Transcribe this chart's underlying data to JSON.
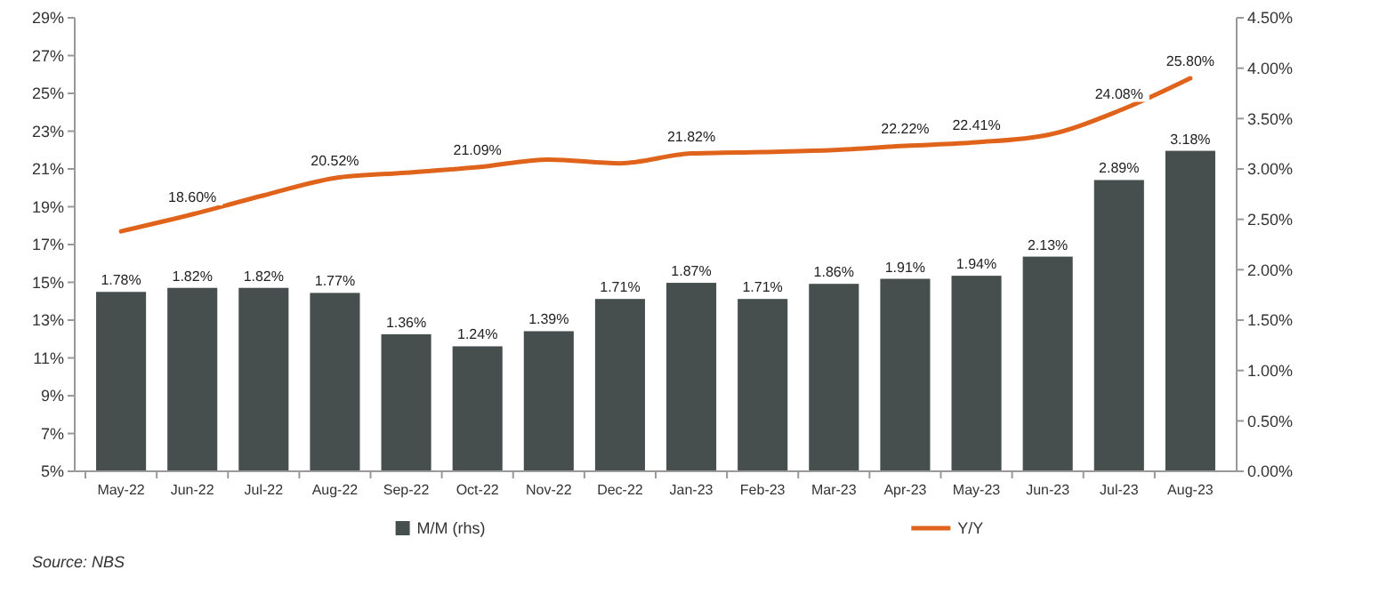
{
  "chart_data": {
    "type": "bar",
    "categories": [
      "May-22",
      "Jun-22",
      "Jul-22",
      "Aug-22",
      "Sep-22",
      "Oct-22",
      "Nov-22",
      "Dec-22",
      "Jan-23",
      "Feb-23",
      "Mar-23",
      "Apr-23",
      "May-23",
      "Jun-23",
      "Jul-23",
      "Aug-23"
    ],
    "series": [
      {
        "name": "M/M (rhs)",
        "axis": "y2",
        "color": "#464e4e",
        "values": [
          1.78,
          1.82,
          1.82,
          1.77,
          1.36,
          1.24,
          1.39,
          1.71,
          1.87,
          1.71,
          1.86,
          1.91,
          1.94,
          2.13,
          2.89,
          3.18
        ],
        "value_labels": [
          "1.78%",
          "1.82%",
          "1.82%",
          "1.77%",
          "1.36%",
          "1.24%",
          "1.39%",
          "1.71%",
          "1.87%",
          "1.71%",
          "1.86%",
          "1.91%",
          "1.94%",
          "2.13%",
          "2.89%",
          "3.18%"
        ]
      },
      {
        "name": "Y/Y",
        "type": "line",
        "axis": "y",
        "color": "#e0631c",
        "values": [
          17.7,
          18.6,
          19.6,
          20.52,
          20.8,
          21.09,
          21.5,
          21.3,
          21.82,
          21.9,
          22.0,
          22.22,
          22.41,
          22.8,
          24.08,
          25.8
        ],
        "value_labels": [
          null,
          "18.60%",
          null,
          "20.52%",
          null,
          "21.09%",
          null,
          null,
          "21.82%",
          null,
          null,
          "22.22%",
          "22.41%",
          null,
          "24.08%",
          "25.80%"
        ]
      }
    ],
    "ylim": [
      5,
      29
    ],
    "yticks": [
      {
        "value": 5,
        "label": "5%"
      },
      {
        "value": 7,
        "label": "7%"
      },
      {
        "value": 9,
        "label": "9%"
      },
      {
        "value": 11,
        "label": "11%"
      },
      {
        "value": 13,
        "label": "13%"
      },
      {
        "value": 15,
        "label": "15%"
      },
      {
        "value": 17,
        "label": "17%"
      },
      {
        "value": 19,
        "label": "19%"
      },
      {
        "value": 21,
        "label": "21%"
      },
      {
        "value": 23,
        "label": "23%"
      },
      {
        "value": 25,
        "label": "25%"
      },
      {
        "value": 27,
        "label": "27%"
      },
      {
        "value": 29,
        "label": "29%"
      }
    ],
    "y2lim": [
      0,
      4.5
    ],
    "y2ticks": [
      {
        "value": 0,
        "label": "0.00%"
      },
      {
        "value": 0.5,
        "label": "0.50%"
      },
      {
        "value": 1,
        "label": "1.00%"
      },
      {
        "value": 1.5,
        "label": "1.50%"
      },
      {
        "value": 2,
        "label": "2.00%"
      },
      {
        "value": 2.5,
        "label": "2.50%"
      },
      {
        "value": 3,
        "label": "3.00%"
      },
      {
        "value": 3.5,
        "label": "3.50%"
      },
      {
        "value": 4,
        "label": "4.00%"
      },
      {
        "value": 4.5,
        "label": "4.50%"
      }
    ],
    "grid": false,
    "legend": "bottom",
    "annotations": [
      "Source: NBS"
    ]
  }
}
